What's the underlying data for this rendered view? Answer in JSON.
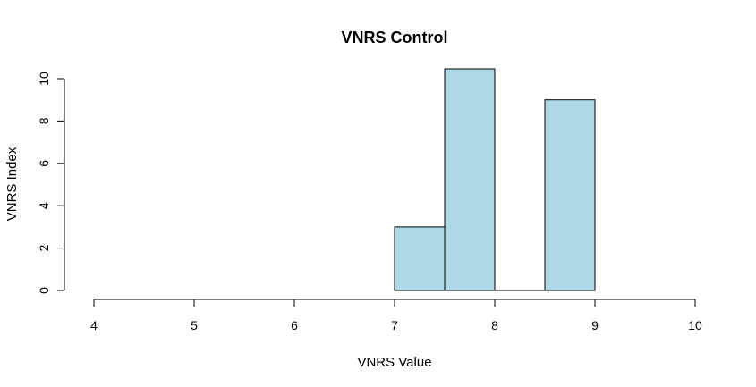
{
  "chart_data": {
    "type": "bar",
    "title": "VNRS Control",
    "xlabel": "VNRS Value",
    "ylabel": "VNRS Index",
    "xlim": [
      4,
      10
    ],
    "ylim": [
      0,
      10
    ],
    "x_ticks": [
      "4",
      "5",
      "6",
      "7",
      "8",
      "9",
      "10"
    ],
    "y_ticks": [
      "0",
      "2",
      "4",
      "6",
      "8",
      "10"
    ],
    "bins": [
      {
        "start": 7.0,
        "end": 7.5,
        "value": 3
      },
      {
        "start": 7.5,
        "end": 8.0,
        "value": 10.5
      },
      {
        "start": 8.0,
        "end": 8.5,
        "value": 0
      },
      {
        "start": 8.5,
        "end": 9.0,
        "value": 9
      }
    ],
    "bar_color": "#add8e6",
    "grid": false,
    "legend": "none"
  }
}
